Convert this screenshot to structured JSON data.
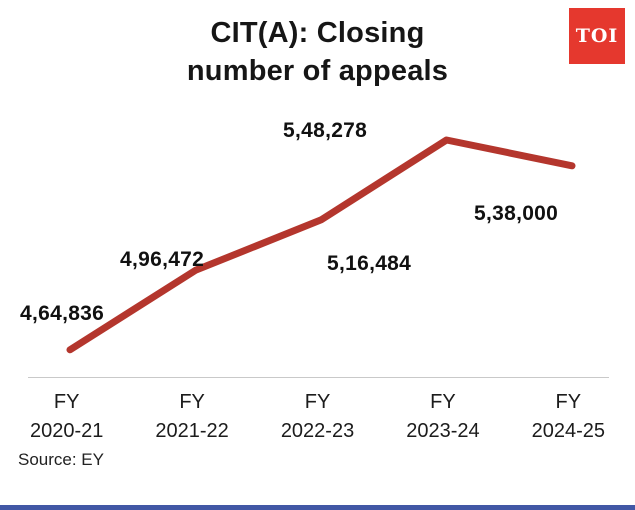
{
  "logo": {
    "text": "TOI",
    "bg_color": "#e5382e"
  },
  "header": {
    "title_line1": "CIT(A): Closing",
    "title_line2": "number of appeals"
  },
  "chart_data": {
    "type": "line",
    "title": "CIT(A): Closing number of appeals",
    "series_name": "Closing number of appeals",
    "categories": [
      "FY 2020-21",
      "FY 2021-22",
      "FY 2022-23",
      "FY 2023-24",
      "FY 2024-25"
    ],
    "values": [
      464836,
      496472,
      516484,
      548278,
      538000
    ],
    "value_labels": [
      "4,64,836",
      "4,96,472",
      "5,16,484",
      "5,48,278",
      "5,38,000"
    ],
    "line_color": "#b4362d",
    "ylim": [
      455000,
      555000
    ],
    "grid": false,
    "legend": false,
    "xlabel": "",
    "ylabel": ""
  },
  "footer": {
    "source": "Source: EY",
    "accent_color": "#4157a5"
  }
}
